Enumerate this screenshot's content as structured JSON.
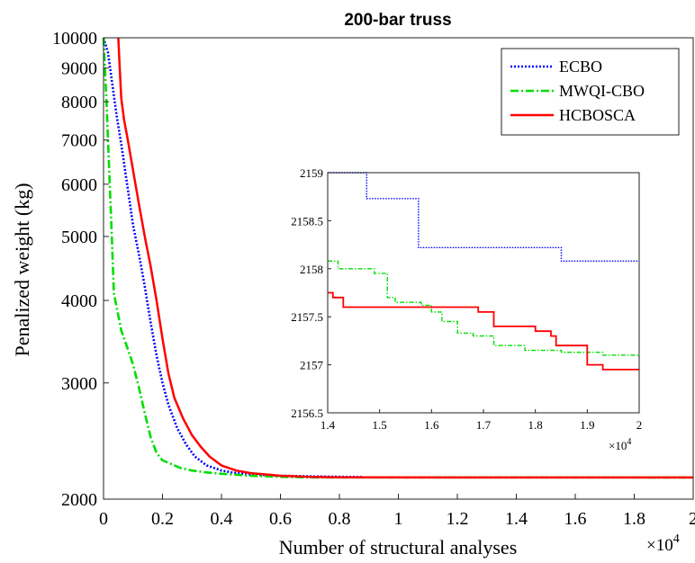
{
  "chart_data": [
    {
      "type": "line",
      "title": "200-bar truss",
      "xlabel": "Number of structural analyses",
      "ylabel": "Penalized weight (kg)",
      "x_exponent_label": "×10",
      "x_exponent_power": "4",
      "xlim": [
        0,
        20000
      ],
      "ylim": [
        2000,
        10000
      ],
      "yscale": "log",
      "grid": false,
      "legend": "top-right",
      "x_ticks": [
        0,
        2000,
        4000,
        6000,
        8000,
        10000,
        12000,
        14000,
        16000,
        18000,
        20000
      ],
      "x_tick_labels": [
        "0",
        "0.2",
        "0.4",
        "0.6",
        "0.8",
        "1",
        "1.2",
        "1.4",
        "1.6",
        "1.8",
        "2"
      ],
      "y_ticks": [
        2000,
        3000,
        4000,
        5000,
        6000,
        7000,
        8000,
        9000,
        10000
      ],
      "y_tick_labels": [
        "2000",
        "3000",
        "4000",
        "5000",
        "6000",
        "7000",
        "8000",
        "9000",
        "10000"
      ],
      "series": [
        {
          "name": "ECBO",
          "color": "#0000ff",
          "style": "dotted",
          "x": [
            0,
            150,
            300,
            450,
            600,
            800,
            1000,
            1200,
            1400,
            1600,
            1800,
            2000,
            2200,
            2500,
            2800,
            3100,
            3500,
            4000,
            4500,
            5000,
            6000,
            7000,
            8800
          ],
          "y": [
            10000,
            9500,
            8500,
            7600,
            6900,
            6000,
            5200,
            4700,
            4200,
            3700,
            3300,
            3000,
            2780,
            2560,
            2420,
            2320,
            2250,
            2210,
            2190,
            2180,
            2170,
            2165,
            2160
          ]
        },
        {
          "name": "MWQI-CBO",
          "color": "#00dd00",
          "style": "dashdot",
          "x": [
            0,
            100,
            200,
            280,
            350,
            450,
            600,
            800,
            1000,
            1200,
            1400,
            1600,
            1800,
            2000,
            2300,
            2600,
            3000,
            3500,
            4000,
            5000,
            6000,
            7000,
            20000
          ],
          "y": [
            10000,
            8000,
            6200,
            5000,
            4100,
            3900,
            3600,
            3400,
            3200,
            2950,
            2700,
            2480,
            2350,
            2290,
            2260,
            2230,
            2210,
            2195,
            2185,
            2170,
            2162,
            2158,
            2157
          ]
        },
        {
          "name": "HCBOSCA",
          "color": "#ff0000",
          "style": "solid",
          "x": [
            500,
            550,
            600,
            700,
            800,
            1000,
            1200,
            1400,
            1600,
            1800,
            2000,
            2200,
            2400,
            2700,
            3000,
            3300,
            3600,
            4000,
            4500,
            5000,
            5500,
            6000,
            7000,
            8000,
            20000
          ],
          "y": [
            10000,
            9000,
            8100,
            7500,
            7100,
            6300,
            5600,
            5000,
            4500,
            4000,
            3500,
            3100,
            2850,
            2650,
            2500,
            2400,
            2320,
            2250,
            2210,
            2190,
            2180,
            2170,
            2162,
            2158,
            2157
          ]
        }
      ]
    },
    {
      "type": "line",
      "title": "",
      "inset": true,
      "x_exponent_label": "×10",
      "x_exponent_power": "4",
      "xlim": [
        14000,
        20000
      ],
      "ylim": [
        2156.5,
        2159
      ],
      "x_ticks": [
        14000,
        15000,
        16000,
        17000,
        18000,
        19000,
        20000
      ],
      "x_tick_labels": [
        "1.4",
        "1.5",
        "1.6",
        "1.7",
        "1.8",
        "1.9",
        "2"
      ],
      "y_ticks": [
        2156.5,
        2157,
        2157.5,
        2158,
        2158.5,
        2159
      ],
      "y_tick_labels": [
        "2156.5",
        "2157",
        "2157.5",
        "2158",
        "2158.5",
        "2159"
      ],
      "series": [
        {
          "name": "ECBO",
          "color": "#0000ff",
          "style": "dotted",
          "steps": [
            [
              14000,
              2159
            ],
            [
              14750,
              2158.73
            ],
            [
              15750,
              2158.22
            ],
            [
              18500,
              2158.08
            ],
            [
              20000,
              2158.08
            ]
          ]
        },
        {
          "name": "MWQI-CBO",
          "color": "#00dd00",
          "style": "dashdot",
          "steps": [
            [
              14000,
              2158.08
            ],
            [
              14200,
              2158.0
            ],
            [
              14900,
              2157.95
            ],
            [
              15150,
              2157.7
            ],
            [
              15300,
              2157.65
            ],
            [
              15800,
              2157.62
            ],
            [
              16000,
              2157.55
            ],
            [
              16200,
              2157.45
            ],
            [
              16500,
              2157.33
            ],
            [
              16800,
              2157.3
            ],
            [
              17200,
              2157.2
            ],
            [
              17800,
              2157.15
            ],
            [
              18500,
              2157.13
            ],
            [
              19300,
              2157.1
            ],
            [
              20000,
              2157.08
            ]
          ]
        },
        {
          "name": "HCBOSCA",
          "color": "#ff0000",
          "style": "solid",
          "steps": [
            [
              14000,
              2157.75
            ],
            [
              14100,
              2157.7
            ],
            [
              14300,
              2157.6
            ],
            [
              16900,
              2157.55
            ],
            [
              17200,
              2157.4
            ],
            [
              18000,
              2157.35
            ],
            [
              18300,
              2157.3
            ],
            [
              18400,
              2157.2
            ],
            [
              19000,
              2157.0
            ],
            [
              19300,
              2156.95
            ],
            [
              20000,
              2156.95
            ]
          ]
        }
      ]
    }
  ]
}
